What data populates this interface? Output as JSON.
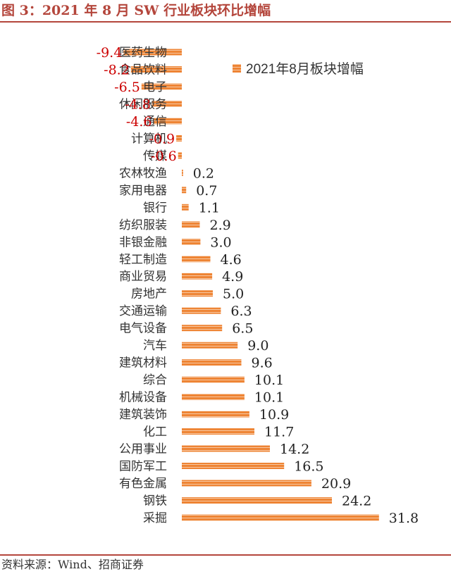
{
  "header": {
    "title": "图 3：2021 年 8 月 SW 行业板块环比增幅"
  },
  "footer": {
    "source": "资料来源：Wind、招商证券"
  },
  "colors": {
    "bar": "#ee8434",
    "stripe": "#ffffff",
    "accent": "#b4463c",
    "negative_label": "#cc0000"
  },
  "chart_data": {
    "type": "bar",
    "orientation": "horizontal",
    "title": "",
    "xlabel": "",
    "ylabel": "",
    "xlim": [
      -9.4,
      31.8
    ],
    "legend": {
      "entries": [
        "2021年8月板块增幅"
      ],
      "placement": "top-right"
    },
    "grid": false,
    "categories": [
      "医药生物",
      "食品饮料",
      "电子",
      "休闲服务",
      "通信",
      "计算机",
      "传媒",
      "农林牧渔",
      "家用电器",
      "银行",
      "纺织服装",
      "非银金融",
      "轻工制造",
      "商业贸易",
      "房地产",
      "交通运输",
      "电气设备",
      "汽车",
      "建筑材料",
      "综合",
      "机械设备",
      "建筑装饰",
      "化工",
      "公用事业",
      "国防军工",
      "有色金属",
      "钢铁",
      "采掘"
    ],
    "value_labels": [
      "-9.4",
      "-8.2",
      "-6.5",
      "-4.8",
      "-4.6",
      "-0.9",
      "-0.6",
      "0.2",
      "0.7",
      "1.1",
      "2.9",
      "3.0",
      "4.6",
      "4.9",
      "5.0",
      "6.3",
      "6.5",
      "9.0",
      "9.6",
      "10.1",
      "10.1",
      "10.9",
      "11.7",
      "14.2",
      "16.5",
      "20.9",
      "24.2",
      "31.8"
    ],
    "series": [
      {
        "name": "2021年8月板块增幅",
        "values": [
          -9.4,
          -8.2,
          -6.5,
          -4.8,
          -4.6,
          -0.9,
          -0.6,
          0.2,
          0.7,
          1.1,
          2.9,
          3.0,
          4.6,
          4.9,
          5.0,
          6.3,
          6.5,
          9.0,
          9.6,
          10.1,
          10.1,
          10.9,
          11.7,
          14.2,
          16.5,
          20.9,
          24.2,
          31.8
        ]
      }
    ]
  }
}
